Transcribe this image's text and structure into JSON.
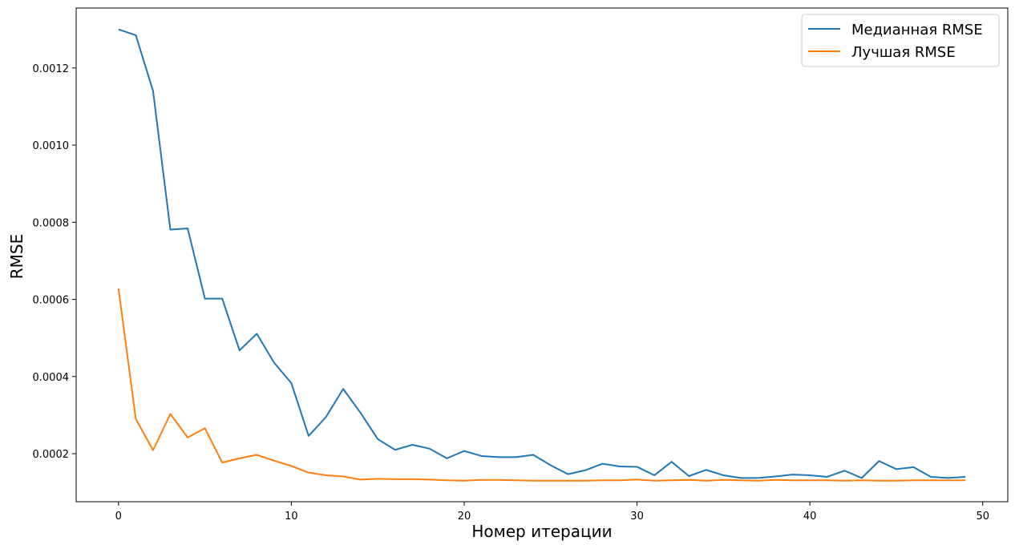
{
  "chart_data": {
    "type": "line",
    "title": "",
    "xlabel": "Номер итерации",
    "ylabel": "RMSE",
    "xlim": [
      -2.45,
      51.45
    ],
    "ylim": [
      7.55e-05,
      0.0013555
    ],
    "xticks": [
      0,
      10,
      20,
      30,
      40,
      50
    ],
    "xtick_labels": [
      "0",
      "10",
      "20",
      "30",
      "40",
      "50"
    ],
    "yticks": [
      0.0002,
      0.0004,
      0.0006,
      0.0008,
      0.001,
      0.0012
    ],
    "ytick_labels": [
      "0.0002",
      "0.0004",
      "0.0006",
      "0.0008",
      "0.0010",
      "0.0012"
    ],
    "grid": false,
    "legend_position": "upper right",
    "x": [
      0,
      1,
      2,
      3,
      4,
      5,
      6,
      7,
      8,
      9,
      10,
      11,
      12,
      13,
      14,
      15,
      16,
      17,
      18,
      19,
      20,
      21,
      22,
      23,
      24,
      25,
      26,
      27,
      28,
      29,
      30,
      31,
      32,
      33,
      34,
      35,
      36,
      37,
      38,
      39,
      40,
      41,
      42,
      43,
      44,
      45,
      46,
      47,
      48,
      49
    ],
    "series": [
      {
        "name": "Медианная RMSE",
        "color": "#1f77b4",
        "values": [
          0.0013,
          0.001285,
          0.00114,
          0.000781,
          0.000784,
          0.000602,
          0.000602,
          0.000468,
          0.000511,
          0.000436,
          0.000383,
          0.000246,
          0.000295,
          0.000368,
          0.000306,
          0.000238,
          0.00021,
          0.000223,
          0.000213,
          0.000188,
          0.000207,
          0.000194,
          0.000191,
          0.000191,
          0.000197,
          0.00017,
          0.000147,
          0.000157,
          0.000174,
          0.000167,
          0.000166,
          0.000144,
          0.000179,
          0.000142,
          0.000158,
          0.000144,
          0.000137,
          0.000137,
          0.000141,
          0.000146,
          0.000144,
          0.00014,
          0.000156,
          0.000137,
          0.000181,
          0.00016,
          0.000165,
          0.00014,
          0.000137,
          0.00014
        ]
      },
      {
        "name": "Лучшая RMSE",
        "color": "#ff7f0e",
        "values": [
          0.000628,
          0.00029,
          0.000209,
          0.000303,
          0.000242,
          0.000266,
          0.000177,
          0.000188,
          0.000197,
          0.000182,
          0.000168,
          0.000151,
          0.000144,
          0.000141,
          0.000133,
          0.000135,
          0.000134,
          0.000134,
          0.000133,
          0.000131,
          0.00013,
          0.000132,
          0.000132,
          0.000131,
          0.00013,
          0.00013,
          0.00013,
          0.00013,
          0.000131,
          0.000131,
          0.000133,
          0.00013,
          0.000131,
          0.000132,
          0.00013,
          0.000132,
          0.000131,
          0.00013,
          0.000132,
          0.000131,
          0.000131,
          0.000131,
          0.00013,
          0.000131,
          0.00013,
          0.00013,
          0.000131,
          0.000131,
          0.000131,
          0.000131
        ]
      }
    ]
  }
}
